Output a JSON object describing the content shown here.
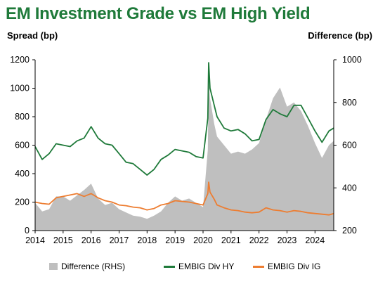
{
  "chart_data": {
    "type": "line",
    "title": "EM Investment Grade vs EM High Yield",
    "ylabel_left": "Spread (bp)",
    "ylabel_right": "Difference (bp)",
    "ylim_left": [
      0,
      1200
    ],
    "yticks_left": [
      "0",
      "200",
      "400",
      "600",
      "800",
      "1000",
      "1200"
    ],
    "ylim_right": [
      200,
      1000
    ],
    "yticks_right": [
      "200",
      "400",
      "600",
      "800",
      "1000"
    ],
    "xlim": [
      2014,
      2024.67
    ],
    "xticks": [
      "2014",
      "2015",
      "2016",
      "2017",
      "2018",
      "2019",
      "2020",
      "2021",
      "2022",
      "2023",
      "2024"
    ],
    "x": [
      2014.0,
      2014.25,
      2014.5,
      2014.75,
      2015.0,
      2015.25,
      2015.5,
      2015.75,
      2016.0,
      2016.25,
      2016.5,
      2016.75,
      2017.0,
      2017.25,
      2017.5,
      2017.75,
      2018.0,
      2018.25,
      2018.5,
      2018.75,
      2019.0,
      2019.25,
      2019.5,
      2019.75,
      2020.0,
      2020.17,
      2020.2,
      2020.25,
      2020.4,
      2020.5,
      2020.75,
      2021.0,
      2021.25,
      2021.5,
      2021.75,
      2022.0,
      2022.25,
      2022.5,
      2022.75,
      2023.0,
      2023.25,
      2023.5,
      2023.75,
      2024.0,
      2024.25,
      2024.5,
      2024.67
    ],
    "series": [
      {
        "name": "Difference (RHS)",
        "axis": "right",
        "style": "area",
        "color": "#bfbfbf",
        "values": [
          330,
          290,
          300,
          360,
          360,
          340,
          365,
          390,
          420,
          350,
          320,
          330,
          300,
          285,
          270,
          265,
          255,
          270,
          290,
          330,
          360,
          340,
          350,
          330,
          310,
          580,
          920,
          820,
          700,
          640,
          600,
          560,
          570,
          560,
          580,
          610,
          720,
          820,
          870,
          780,
          800,
          760,
          690,
          610,
          540,
          600,
          620
        ]
      },
      {
        "name": "EMBIG Div HY",
        "axis": "left",
        "style": "line",
        "color": "#1f7a3a",
        "values": [
          590,
          500,
          540,
          610,
          600,
          590,
          630,
          650,
          730,
          650,
          610,
          600,
          540,
          480,
          470,
          430,
          390,
          430,
          500,
          530,
          570,
          560,
          550,
          520,
          510,
          790,
          1180,
          1000,
          880,
          800,
          720,
          700,
          710,
          680,
          630,
          640,
          780,
          850,
          820,
          800,
          880,
          880,
          790,
          700,
          620,
          700,
          720
        ]
      },
      {
        "name": "EMBIG Div IG",
        "axis": "left",
        "style": "line",
        "color": "#ed7d31",
        "values": [
          200,
          190,
          185,
          230,
          240,
          250,
          260,
          240,
          260,
          230,
          210,
          200,
          180,
          175,
          165,
          160,
          145,
          155,
          180,
          190,
          210,
          205,
          200,
          190,
          180,
          260,
          340,
          270,
          220,
          180,
          160,
          145,
          140,
          130,
          125,
          130,
          160,
          145,
          140,
          130,
          140,
          135,
          125,
          120,
          115,
          110,
          120
        ]
      }
    ],
    "legend": "bottom"
  }
}
